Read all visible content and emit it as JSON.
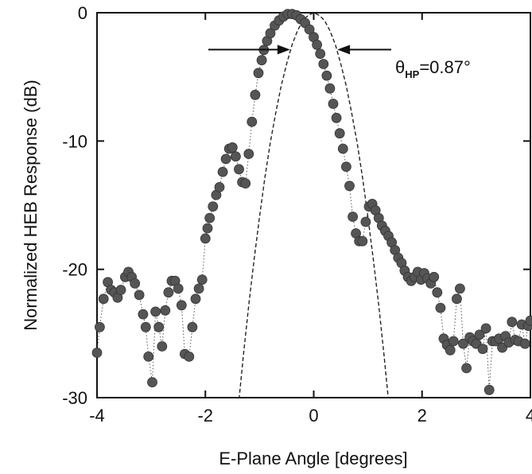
{
  "chart_data": {
    "type": "scatter",
    "title": "",
    "xlabel": "E-Plane Angle  [degrees]",
    "ylabel": "Normalized HEB Response  (dB)",
    "xlim": [
      -4,
      4
    ],
    "ylim": [
      -30,
      0
    ],
    "xticks": [
      -4,
      -2,
      0,
      2,
      4
    ],
    "yticks": [
      0,
      -10,
      -20,
      -30
    ],
    "xtick_labels": [
      "-4",
      "-2",
      "0",
      "2",
      "4"
    ],
    "ytick_labels": [
      "0",
      "-10",
      "-20",
      "-30"
    ],
    "grid": false,
    "marker_color": "#555555",
    "annotation": {
      "symbol": "θ",
      "subscript": "HP",
      "value_text": "=0.87°",
      "width_deg": 0.87,
      "level_db": -3
    },
    "series": [
      {
        "style": "markers-with-dotted-line",
        "x": [
          -4.0,
          -3.95,
          -3.88,
          -3.8,
          -3.74,
          -3.68,
          -3.62,
          -3.56,
          -3.48,
          -3.42,
          -3.36,
          -3.3,
          -3.22,
          -3.15,
          -3.1,
          -3.05,
          -2.98,
          -2.92,
          -2.86,
          -2.8,
          -2.74,
          -2.68,
          -2.62,
          -2.56,
          -2.5,
          -2.44,
          -2.38,
          -2.3,
          -2.24,
          -2.18,
          -2.12,
          -2.06,
          -2.0,
          -1.96,
          -1.92,
          -1.86,
          -1.8,
          -1.74,
          -1.68,
          -1.62,
          -1.56,
          -1.5,
          -1.44,
          -1.38,
          -1.32,
          -1.26,
          -1.2,
          -1.14,
          -1.08,
          -1.02,
          -0.96,
          -0.92,
          -0.86,
          -0.8,
          -0.72,
          -0.64,
          -0.56,
          -0.48,
          -0.4,
          -0.32,
          -0.24,
          -0.16,
          -0.08,
          0.0,
          0.06,
          0.12,
          0.18,
          0.24,
          0.3,
          0.36,
          0.42,
          0.48,
          0.54,
          0.6,
          0.66,
          0.72,
          0.78,
          0.84,
          0.9,
          0.96,
          1.02,
          1.08,
          1.14,
          1.2,
          1.26,
          1.32,
          1.38,
          1.44,
          1.5,
          1.56,
          1.62,
          1.68,
          1.74,
          1.8,
          1.86,
          1.92,
          1.98,
          2.04,
          2.1,
          2.16,
          2.22,
          2.28,
          2.34,
          2.4,
          2.46,
          2.52,
          2.58,
          2.64,
          2.7,
          2.76,
          2.82,
          2.88,
          2.94,
          3.0,
          3.06,
          3.12,
          3.18,
          3.24,
          3.3,
          3.36,
          3.42,
          3.48,
          3.54,
          3.6,
          3.66,
          3.72,
          3.78,
          3.84,
          3.9,
          3.96,
          4.0
        ],
        "y": [
          -26.5,
          -24.5,
          -22.3,
          -21.0,
          -21.6,
          -21.8,
          -22.2,
          -21.6,
          -20.6,
          -20.2,
          -20.6,
          -21.1,
          -22.0,
          -23.5,
          -24.5,
          -26.8,
          -28.8,
          -23.3,
          -24.5,
          -26.0,
          -23.2,
          -21.8,
          -20.9,
          -20.9,
          -21.5,
          -22.8,
          -26.6,
          -26.8,
          -24.5,
          -22.3,
          -21.5,
          -20.8,
          -17.6,
          -16.8,
          -16.0,
          -15.1,
          -14.2,
          -13.6,
          -12.4,
          -11.4,
          -10.6,
          -10.5,
          -11.2,
          -12.2,
          -13.2,
          -13.3,
          -11.0,
          -8.5,
          -6.4,
          -4.7,
          -3.7,
          -2.9,
          -2.2,
          -1.6,
          -1.0,
          -0.6,
          -0.3,
          -0.1,
          -0.1,
          -0.2,
          -0.5,
          -0.8,
          -1.3,
          -1.9,
          -2.5,
          -3.2,
          -4.0,
          -4.9,
          -5.9,
          -7.1,
          -8.2,
          -9.4,
          -10.6,
          -12.0,
          -13.5,
          -15.9,
          -17.2,
          -17.8,
          -17.8,
          -16.3,
          -15.1,
          -14.9,
          -15.4,
          -16.0,
          -16.6,
          -17.0,
          -17.4,
          -17.9,
          -18.5,
          -19.1,
          -19.5,
          -20.1,
          -20.6,
          -20.9,
          -20.6,
          -20.2,
          -20.8,
          -20.3,
          -20.7,
          -21.1,
          -20.6,
          -21.8,
          -23.0,
          -25.4,
          -25.9,
          -26.3,
          -25.6,
          -22.3,
          -21.5,
          -25.8,
          -27.7,
          -25.3,
          -25.6,
          -25.8,
          -25.1,
          -26.2,
          -24.6,
          -29.4,
          -25.6,
          -25.6,
          -25.4,
          -26.1,
          -25.2,
          -25.7,
          -24.1,
          -25.5,
          -25.6,
          -24.3,
          -25.8,
          -24.4,
          -24.0
        ]
      },
      {
        "style": "dashed-line",
        "x": [
          -1.4,
          -1.3,
          -1.2,
          -1.1,
          -1.0,
          -0.9,
          -0.8,
          -0.7,
          -0.6,
          -0.5,
          -0.4,
          -0.3,
          -0.2,
          -0.1,
          0.0,
          0.1,
          0.2,
          0.3,
          0.4,
          0.5,
          0.6,
          0.7,
          0.8,
          0.9,
          1.0,
          1.1,
          1.2,
          1.3,
          1.4
        ],
        "y": [
          -31.1,
          -26.8,
          -22.8,
          -19.2,
          -15.9,
          -12.8,
          -10.1,
          -7.8,
          -5.7,
          -4.0,
          -2.5,
          -1.4,
          -0.6,
          -0.2,
          0.0,
          -0.2,
          -0.6,
          -1.4,
          -2.5,
          -4.0,
          -5.7,
          -7.8,
          -10.1,
          -12.8,
          -15.9,
          -19.2,
          -22.8,
          -26.8,
          -31.1
        ]
      }
    ]
  }
}
